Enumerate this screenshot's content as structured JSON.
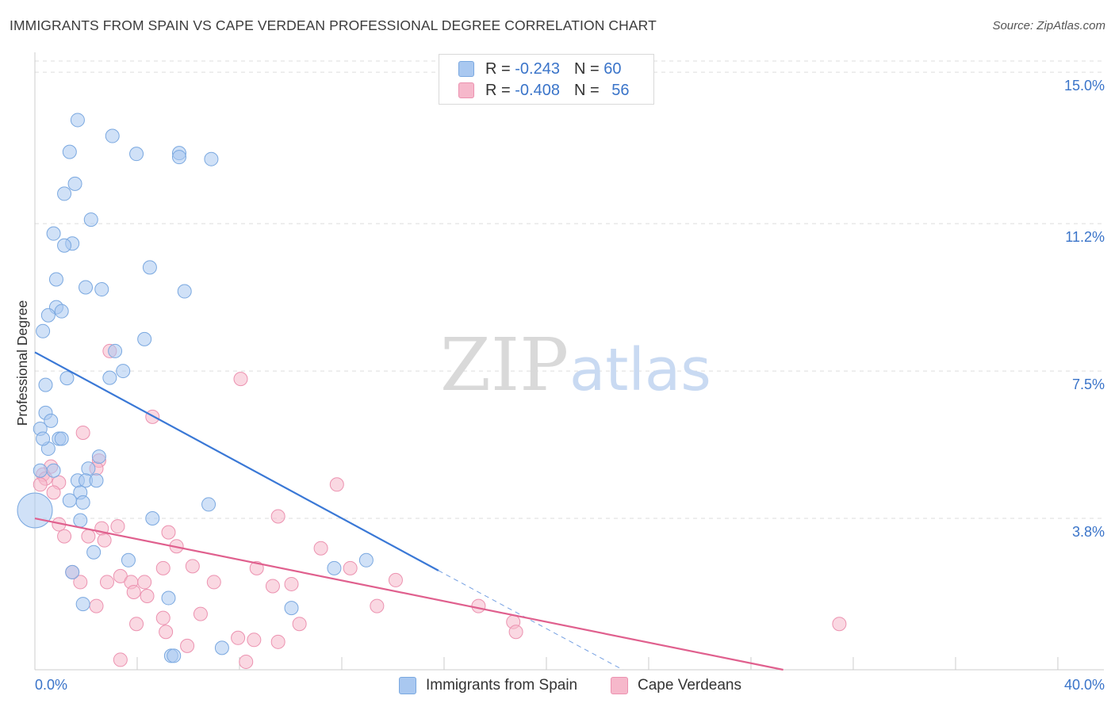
{
  "title": "IMMIGRANTS FROM SPAIN VS CAPE VERDEAN PROFESSIONAL DEGREE CORRELATION CHART",
  "source": "Source: ZipAtlas.com",
  "watermark": {
    "zip": "ZIP",
    "atlas": "atlas"
  },
  "legend_top": {
    "rows": [
      {
        "r_label": "R =",
        "r_value": "-0.243",
        "n_label": "N =",
        "n_value": "60"
      },
      {
        "r_label": "R =",
        "r_value": "-0.408",
        "n_label": "N =",
        "n_value": "56"
      }
    ]
  },
  "legend_bottom": {
    "series1": "Immigrants from Spain",
    "series2": "Cape Verdeans"
  },
  "colors": {
    "blue_fill": "#a9c8f0",
    "blue_stroke": "#7aa8e0",
    "blue_line": "#3a78d6",
    "pink_fill": "#f6b8cb",
    "pink_stroke": "#ec92b0",
    "pink_line": "#e0608e",
    "tick_label": "#3a74c9",
    "grid": "#dddddd"
  },
  "chart_data": {
    "type": "scatter",
    "title": "IMMIGRANTS FROM SPAIN VS CAPE VERDEAN PROFESSIONAL DEGREE CORRELATION CHART",
    "xlabel": "",
    "ylabel": "Professional Degree",
    "xlim": [
      0,
      40
    ],
    "ylim": [
      0,
      15.5
    ],
    "y_ticks": [
      3.8,
      7.5,
      11.2,
      15.0
    ],
    "y_tick_labels": [
      "3.8%",
      "7.5%",
      "11.2%",
      "15.0%"
    ],
    "x_tick_labels": [
      "0.0%",
      "40.0%"
    ],
    "grid": true,
    "legend_position": "top-center",
    "series": [
      {
        "name": "Immigrants from Spain",
        "color": "#a9c8f0",
        "r": -0.243,
        "n": 60,
        "trend": {
          "x": [
            0,
            15.1
          ],
          "y": [
            7.97,
            2.49
          ]
        },
        "trend_extension": {
          "x": [
            15.1,
            22.0
          ],
          "y": [
            2.49,
            0.0
          ]
        },
        "points": [
          {
            "x": 1.6,
            "y": 13.8
          },
          {
            "x": 2.9,
            "y": 13.4
          },
          {
            "x": 1.3,
            "y": 13.0
          },
          {
            "x": 3.8,
            "y": 12.95
          },
          {
            "x": 5.4,
            "y": 12.97
          },
          {
            "x": 5.4,
            "y": 12.87
          },
          {
            "x": 6.6,
            "y": 12.82
          },
          {
            "x": 1.5,
            "y": 12.2
          },
          {
            "x": 1.1,
            "y": 11.95
          },
          {
            "x": 2.1,
            "y": 11.3
          },
          {
            "x": 0.7,
            "y": 10.95
          },
          {
            "x": 1.4,
            "y": 10.7
          },
          {
            "x": 1.1,
            "y": 10.65
          },
          {
            "x": 4.3,
            "y": 10.1
          },
          {
            "x": 0.8,
            "y": 9.8
          },
          {
            "x": 1.9,
            "y": 9.6
          },
          {
            "x": 2.5,
            "y": 9.55
          },
          {
            "x": 5.6,
            "y": 9.5
          },
          {
            "x": 0.8,
            "y": 9.1
          },
          {
            "x": 1.0,
            "y": 9.0
          },
          {
            "x": 0.5,
            "y": 8.9
          },
          {
            "x": 0.3,
            "y": 8.5
          },
          {
            "x": 4.1,
            "y": 8.3
          },
          {
            "x": 3.0,
            "y": 8.0
          },
          {
            "x": 3.3,
            "y": 7.5
          },
          {
            "x": 1.2,
            "y": 7.32
          },
          {
            "x": 2.8,
            "y": 7.33
          },
          {
            "x": 0.4,
            "y": 7.15
          },
          {
            "x": 0.4,
            "y": 6.45
          },
          {
            "x": 0.6,
            "y": 6.25
          },
          {
            "x": 0.2,
            "y": 6.05
          },
          {
            "x": 0.9,
            "y": 5.8
          },
          {
            "x": 1.0,
            "y": 5.8
          },
          {
            "x": 0.5,
            "y": 5.55
          },
          {
            "x": 0.3,
            "y": 5.8
          },
          {
            "x": 2.4,
            "y": 5.35
          },
          {
            "x": 2.0,
            "y": 5.05
          },
          {
            "x": 0.7,
            "y": 5.0
          },
          {
            "x": 0.2,
            "y": 5.0
          },
          {
            "x": 1.6,
            "y": 4.75
          },
          {
            "x": 1.9,
            "y": 4.75
          },
          {
            "x": 2.3,
            "y": 4.75
          },
          {
            "x": 1.7,
            "y": 4.45
          },
          {
            "x": 1.3,
            "y": 4.25
          },
          {
            "x": 1.8,
            "y": 4.2
          },
          {
            "x": 0.0,
            "y": 4.0,
            "size": "large"
          },
          {
            "x": 6.5,
            "y": 4.15
          },
          {
            "x": 1.7,
            "y": 3.75
          },
          {
            "x": 4.4,
            "y": 3.8
          },
          {
            "x": 2.2,
            "y": 2.95
          },
          {
            "x": 3.5,
            "y": 2.75
          },
          {
            "x": 11.2,
            "y": 2.55
          },
          {
            "x": 12.4,
            "y": 2.75
          },
          {
            "x": 1.4,
            "y": 2.45
          },
          {
            "x": 5.0,
            "y": 1.8
          },
          {
            "x": 1.8,
            "y": 1.65
          },
          {
            "x": 9.6,
            "y": 1.55
          },
          {
            "x": 7.0,
            "y": 0.55
          },
          {
            "x": 5.1,
            "y": 0.35
          },
          {
            "x": 5.2,
            "y": 0.35
          }
        ]
      },
      {
        "name": "Cape Verdeans",
        "color": "#f6b8cb",
        "r": -0.408,
        "n": 56,
        "trend": {
          "x": [
            0,
            28.0
          ],
          "y": [
            3.8,
            0.0
          ]
        },
        "points": [
          {
            "x": 2.8,
            "y": 8.0
          },
          {
            "x": 7.7,
            "y": 7.3
          },
          {
            "x": 4.4,
            "y": 6.35
          },
          {
            "x": 1.8,
            "y": 5.95
          },
          {
            "x": 2.4,
            "y": 5.25
          },
          {
            "x": 0.6,
            "y": 5.1
          },
          {
            "x": 2.3,
            "y": 5.05
          },
          {
            "x": 0.3,
            "y": 4.9
          },
          {
            "x": 0.4,
            "y": 4.8
          },
          {
            "x": 0.9,
            "y": 4.7
          },
          {
            "x": 0.2,
            "y": 4.65
          },
          {
            "x": 11.3,
            "y": 4.65
          },
          {
            "x": 0.7,
            "y": 4.45
          },
          {
            "x": 9.1,
            "y": 3.85
          },
          {
            "x": 0.9,
            "y": 3.65
          },
          {
            "x": 3.1,
            "y": 3.6
          },
          {
            "x": 2.5,
            "y": 3.55
          },
          {
            "x": 5.0,
            "y": 3.45
          },
          {
            "x": 1.1,
            "y": 3.35
          },
          {
            "x": 2.0,
            "y": 3.35
          },
          {
            "x": 2.6,
            "y": 3.25
          },
          {
            "x": 5.3,
            "y": 3.1
          },
          {
            "x": 10.7,
            "y": 3.05
          },
          {
            "x": 5.9,
            "y": 2.6
          },
          {
            "x": 4.8,
            "y": 2.55
          },
          {
            "x": 8.3,
            "y": 2.55
          },
          {
            "x": 11.8,
            "y": 2.55
          },
          {
            "x": 1.4,
            "y": 2.45
          },
          {
            "x": 3.2,
            "y": 2.35
          },
          {
            "x": 2.7,
            "y": 2.2
          },
          {
            "x": 3.6,
            "y": 2.2
          },
          {
            "x": 4.1,
            "y": 2.2
          },
          {
            "x": 1.7,
            "y": 2.2
          },
          {
            "x": 6.7,
            "y": 2.2
          },
          {
            "x": 9.6,
            "y": 2.15
          },
          {
            "x": 8.9,
            "y": 2.1
          },
          {
            "x": 13.5,
            "y": 2.25
          },
          {
            "x": 3.7,
            "y": 1.95
          },
          {
            "x": 4.2,
            "y": 1.85
          },
          {
            "x": 2.3,
            "y": 1.6
          },
          {
            "x": 12.8,
            "y": 1.6
          },
          {
            "x": 16.6,
            "y": 1.6
          },
          {
            "x": 6.2,
            "y": 1.4
          },
          {
            "x": 4.8,
            "y": 1.3
          },
          {
            "x": 3.8,
            "y": 1.15
          },
          {
            "x": 9.9,
            "y": 1.15
          },
          {
            "x": 17.9,
            "y": 1.2
          },
          {
            "x": 30.1,
            "y": 1.15
          },
          {
            "x": 4.9,
            "y": 0.95
          },
          {
            "x": 18.0,
            "y": 0.95
          },
          {
            "x": 7.6,
            "y": 0.8
          },
          {
            "x": 8.2,
            "y": 0.75
          },
          {
            "x": 9.1,
            "y": 0.7
          },
          {
            "x": 5.7,
            "y": 0.6
          },
          {
            "x": 3.2,
            "y": 0.25
          },
          {
            "x": 7.9,
            "y": 0.2
          }
        ]
      }
    ]
  }
}
